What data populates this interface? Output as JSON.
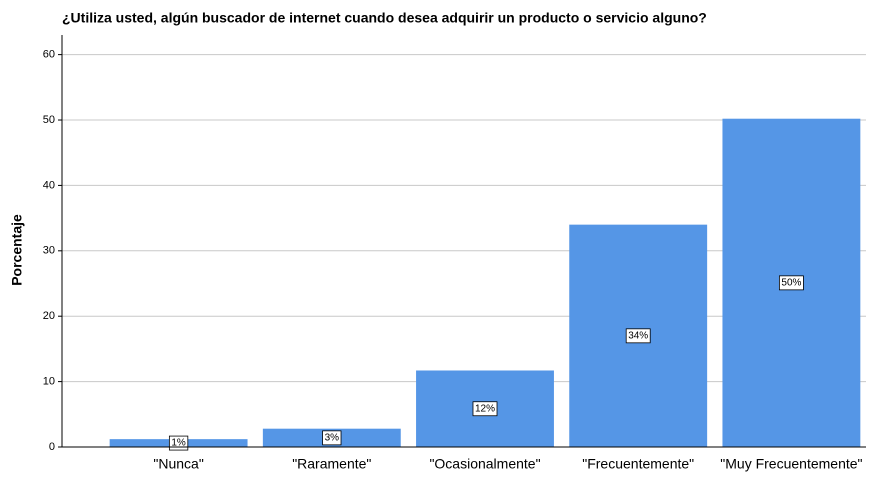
{
  "chart_data": {
    "type": "bar",
    "title": "¿Utiliza usted, algún buscador de internet cuando desea adquirir un producto o servicio alguno?",
    "ylabel": "Porcentaje",
    "categories": [
      "\"Nunca\"",
      "\"Raramente\"",
      "\"Ocasionalmente\"",
      "\"Frecuentemente\"",
      "\"Muy Frecuentemente\""
    ],
    "values": [
      1.2,
      2.8,
      11.7,
      34.0,
      50.2
    ],
    "value_labels": [
      "1%",
      "3%",
      "12%",
      "34%",
      "50%"
    ],
    "color": "#5596e6",
    "ylim": [
      0,
      63
    ],
    "yticks": [
      0,
      10,
      20,
      30,
      40,
      50,
      60
    ],
    "grid": true
  }
}
